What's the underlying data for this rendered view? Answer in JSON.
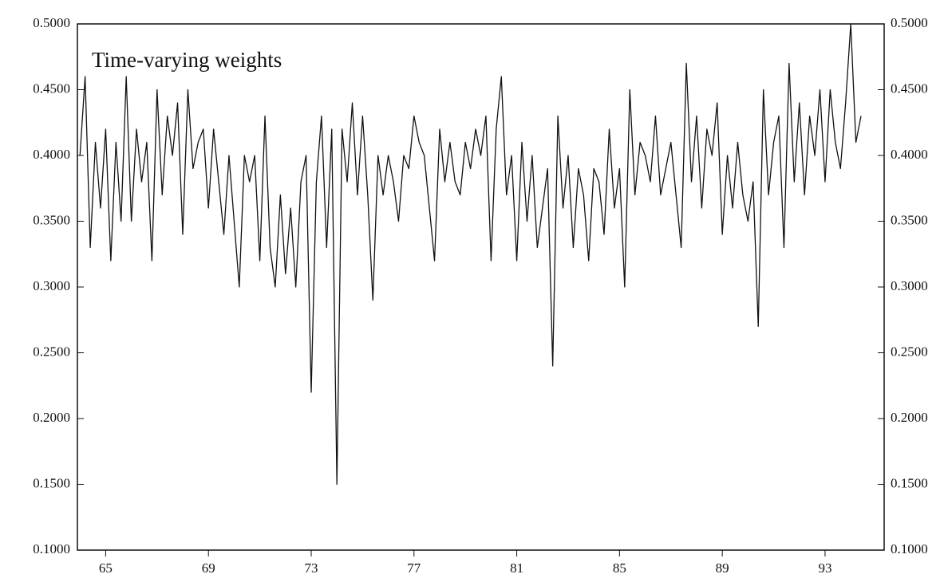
{
  "chart_data": {
    "type": "line",
    "title": "Time-varying weights",
    "color": "#111111",
    "xlim": [
      63.9,
      95.3
    ],
    "xticks": [
      65,
      69,
      73,
      77,
      81,
      85,
      89,
      93
    ],
    "ylim": [
      0.1,
      0.5
    ],
    "yticks": [
      {
        "value": 0.1,
        "label": "0.1000"
      },
      {
        "value": 0.15,
        "label": "0.1500"
      },
      {
        "value": 0.2,
        "label": "0.2000"
      },
      {
        "value": 0.25,
        "label": "0.2500"
      },
      {
        "value": 0.3,
        "label": "0.3000"
      },
      {
        "value": 0.35,
        "label": "0.3500"
      },
      {
        "value": 0.4,
        "label": "0.4000"
      },
      {
        "value": 0.45,
        "label": "0.4500"
      },
      {
        "value": 0.5,
        "label": "0.5000"
      }
    ],
    "y2lim": [
      0.1,
      0.5
    ],
    "y2ticks": [
      {
        "value": 0.1,
        "label": "0.1000"
      },
      {
        "value": 0.15,
        "label": "0.1500"
      },
      {
        "value": 0.2,
        "label": "0.2000"
      },
      {
        "value": 0.25,
        "label": "0.2500"
      },
      {
        "value": 0.3,
        "label": "0.3000"
      },
      {
        "value": 0.35,
        "label": "0.3500"
      },
      {
        "value": 0.4,
        "label": "0.4000"
      },
      {
        "value": 0.45,
        "label": "0.4500"
      },
      {
        "value": 0.5,
        "label": "0.5000"
      }
    ],
    "x": [
      64.0,
      64.2,
      64.4,
      64.6,
      64.8,
      65.0,
      65.2,
      65.4,
      65.6,
      65.8,
      66.0,
      66.2,
      66.4,
      66.6,
      66.8,
      67.0,
      67.2,
      67.4,
      67.6,
      67.8,
      68.0,
      68.2,
      68.4,
      68.6,
      68.8,
      69.0,
      69.2,
      69.4,
      69.6,
      69.8,
      70.0,
      70.2,
      70.4,
      70.6,
      70.8,
      71.0,
      71.2,
      71.4,
      71.6,
      71.8,
      72.0,
      72.2,
      72.4,
      72.6,
      72.8,
      73.0,
      73.2,
      73.4,
      73.6,
      73.8,
      74.0,
      74.2,
      74.4,
      74.6,
      74.8,
      75.0,
      75.2,
      75.4,
      75.6,
      75.8,
      76.0,
      76.2,
      76.4,
      76.6,
      76.8,
      77.0,
      77.2,
      77.4,
      77.6,
      77.8,
      78.0,
      78.2,
      78.4,
      78.6,
      78.8,
      79.0,
      79.2,
      79.4,
      79.6,
      79.8,
      80.0,
      80.2,
      80.4,
      80.6,
      80.8,
      81.0,
      81.2,
      81.4,
      81.6,
      81.8,
      82.0,
      82.2,
      82.4,
      82.6,
      82.8,
      83.0,
      83.2,
      83.4,
      83.6,
      83.8,
      84.0,
      84.2,
      84.4,
      84.6,
      84.8,
      85.0,
      85.2,
      85.4,
      85.6,
      85.8,
      86.0,
      86.2,
      86.4,
      86.6,
      86.8,
      87.0,
      87.2,
      87.4,
      87.6,
      87.8,
      88.0,
      88.2,
      88.4,
      88.6,
      88.8,
      89.0,
      89.2,
      89.4,
      89.6,
      89.8,
      90.0,
      90.2,
      90.4,
      90.6,
      90.8,
      91.0,
      91.2,
      91.4,
      91.6,
      91.8,
      92.0,
      92.2,
      92.4,
      92.6,
      92.8,
      93.0,
      93.2,
      93.4,
      93.6,
      93.8,
      94.0,
      94.2,
      94.4
    ],
    "values": [
      0.4,
      0.46,
      0.33,
      0.41,
      0.36,
      0.42,
      0.32,
      0.41,
      0.35,
      0.46,
      0.35,
      0.42,
      0.38,
      0.41,
      0.32,
      0.45,
      0.37,
      0.43,
      0.4,
      0.44,
      0.34,
      0.45,
      0.39,
      0.41,
      0.42,
      0.36,
      0.42,
      0.38,
      0.34,
      0.4,
      0.35,
      0.3,
      0.4,
      0.38,
      0.4,
      0.32,
      0.43,
      0.33,
      0.3,
      0.37,
      0.31,
      0.36,
      0.3,
      0.38,
      0.4,
      0.22,
      0.38,
      0.43,
      0.33,
      0.42,
      0.15,
      0.42,
      0.38,
      0.44,
      0.37,
      0.43,
      0.37,
      0.29,
      0.4,
      0.37,
      0.4,
      0.38,
      0.35,
      0.4,
      0.39,
      0.43,
      0.41,
      0.4,
      0.36,
      0.32,
      0.42,
      0.38,
      0.41,
      0.38,
      0.37,
      0.41,
      0.39,
      0.42,
      0.4,
      0.43,
      0.32,
      0.42,
      0.46,
      0.37,
      0.4,
      0.32,
      0.41,
      0.35,
      0.4,
      0.33,
      0.36,
      0.39,
      0.24,
      0.43,
      0.36,
      0.4,
      0.33,
      0.39,
      0.37,
      0.32,
      0.39,
      0.38,
      0.34,
      0.42,
      0.36,
      0.39,
      0.3,
      0.45,
      0.37,
      0.41,
      0.4,
      0.38,
      0.43,
      0.37,
      0.39,
      0.41,
      0.37,
      0.33,
      0.47,
      0.38,
      0.43,
      0.36,
      0.42,
      0.4,
      0.44,
      0.34,
      0.4,
      0.36,
      0.41,
      0.37,
      0.35,
      0.38,
      0.27,
      0.45,
      0.37,
      0.41,
      0.43,
      0.33,
      0.47,
      0.38,
      0.44,
      0.37,
      0.43,
      0.4,
      0.45,
      0.38,
      0.45,
      0.41,
      0.39,
      0.44,
      0.5,
      0.41,
      0.43
    ]
  }
}
